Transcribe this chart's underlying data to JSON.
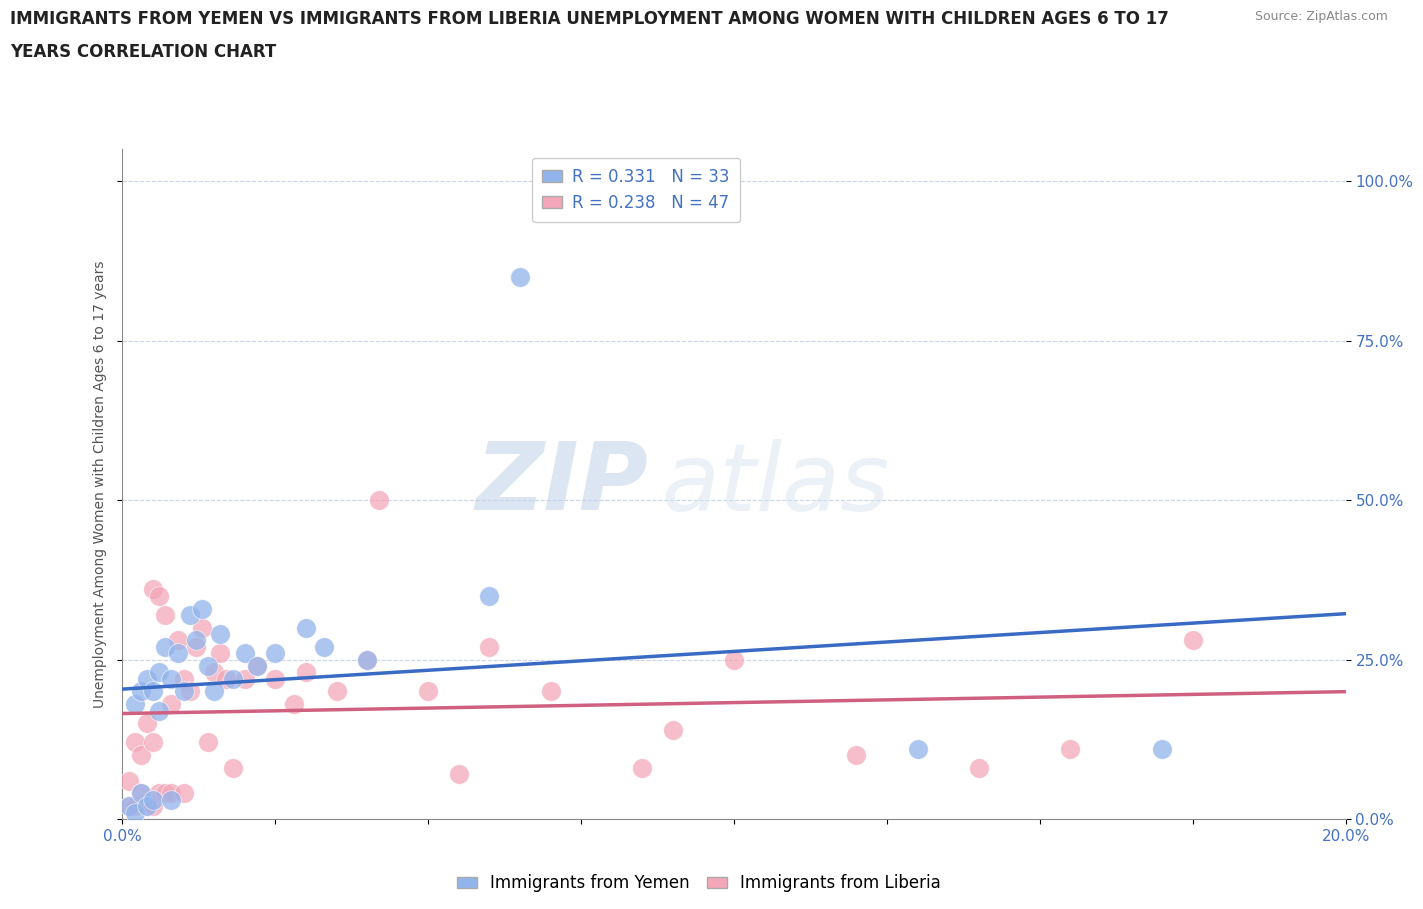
{
  "title_line1": "IMMIGRANTS FROM YEMEN VS IMMIGRANTS FROM LIBERIA UNEMPLOYMENT AMONG WOMEN WITH CHILDREN AGES 6 TO 17",
  "title_line2": "YEARS CORRELATION CHART",
  "source_text": "Source: ZipAtlas.com",
  "ylabel": "Unemployment Among Women with Children Ages 6 to 17 years",
  "xlim": [
    0.0,
    0.2
  ],
  "ylim": [
    0.0,
    1.05
  ],
  "yticks": [
    0.0,
    0.25,
    0.5,
    0.75,
    1.0
  ],
  "ytick_labels": [
    "0.0%",
    "25.0%",
    "50.0%",
    "75.0%",
    "100.0%"
  ],
  "xticks": [
    0.0,
    0.025,
    0.05,
    0.075,
    0.1,
    0.125,
    0.15,
    0.175,
    0.2
  ],
  "xtick_labels": [
    "0.0%",
    "",
    "",
    "",
    "",
    "",
    "",
    "",
    "20.0%"
  ],
  "yemen_R": "0.331",
  "yemen_N": "33",
  "liberia_R": "0.238",
  "liberia_N": "47",
  "yemen_color": "#92B4EC",
  "liberia_color": "#F4A7B9",
  "yemen_line_color": "#3A6BC4",
  "liberia_line_color": "#D06080",
  "watermark_zip": "ZIP",
  "watermark_atlas": "atlas",
  "yemen_scatter_x": [
    0.001,
    0.002,
    0.002,
    0.003,
    0.003,
    0.004,
    0.004,
    0.005,
    0.005,
    0.006,
    0.006,
    0.007,
    0.008,
    0.008,
    0.009,
    0.01,
    0.011,
    0.012,
    0.013,
    0.014,
    0.015,
    0.016,
    0.018,
    0.02,
    0.022,
    0.025,
    0.03,
    0.033,
    0.04,
    0.06,
    0.065,
    0.13,
    0.17
  ],
  "yemen_scatter_y": [
    0.02,
    0.01,
    0.18,
    0.04,
    0.2,
    0.02,
    0.22,
    0.03,
    0.2,
    0.17,
    0.23,
    0.27,
    0.03,
    0.22,
    0.26,
    0.2,
    0.32,
    0.28,
    0.33,
    0.24,
    0.2,
    0.29,
    0.22,
    0.26,
    0.24,
    0.26,
    0.3,
    0.27,
    0.25,
    0.35,
    0.85,
    0.11,
    0.11
  ],
  "liberia_scatter_x": [
    0.001,
    0.001,
    0.002,
    0.002,
    0.003,
    0.003,
    0.004,
    0.004,
    0.005,
    0.005,
    0.005,
    0.006,
    0.006,
    0.007,
    0.007,
    0.008,
    0.008,
    0.009,
    0.01,
    0.01,
    0.011,
    0.012,
    0.013,
    0.014,
    0.015,
    0.016,
    0.017,
    0.018,
    0.02,
    0.022,
    0.025,
    0.028,
    0.03,
    0.035,
    0.04,
    0.042,
    0.05,
    0.055,
    0.06,
    0.07,
    0.085,
    0.09,
    0.1,
    0.12,
    0.14,
    0.155,
    0.175
  ],
  "liberia_scatter_y": [
    0.02,
    0.06,
    0.02,
    0.12,
    0.04,
    0.1,
    0.02,
    0.15,
    0.02,
    0.12,
    0.36,
    0.04,
    0.35,
    0.04,
    0.32,
    0.04,
    0.18,
    0.28,
    0.04,
    0.22,
    0.2,
    0.27,
    0.3,
    0.12,
    0.23,
    0.26,
    0.22,
    0.08,
    0.22,
    0.24,
    0.22,
    0.18,
    0.23,
    0.2,
    0.25,
    0.5,
    0.2,
    0.07,
    0.27,
    0.2,
    0.08,
    0.14,
    0.25,
    0.1,
    0.08,
    0.11,
    0.28
  ],
  "title_fontsize": 12,
  "label_fontsize": 10,
  "tick_fontsize": 11,
  "legend_fontsize": 12,
  "source_fontsize": 9
}
